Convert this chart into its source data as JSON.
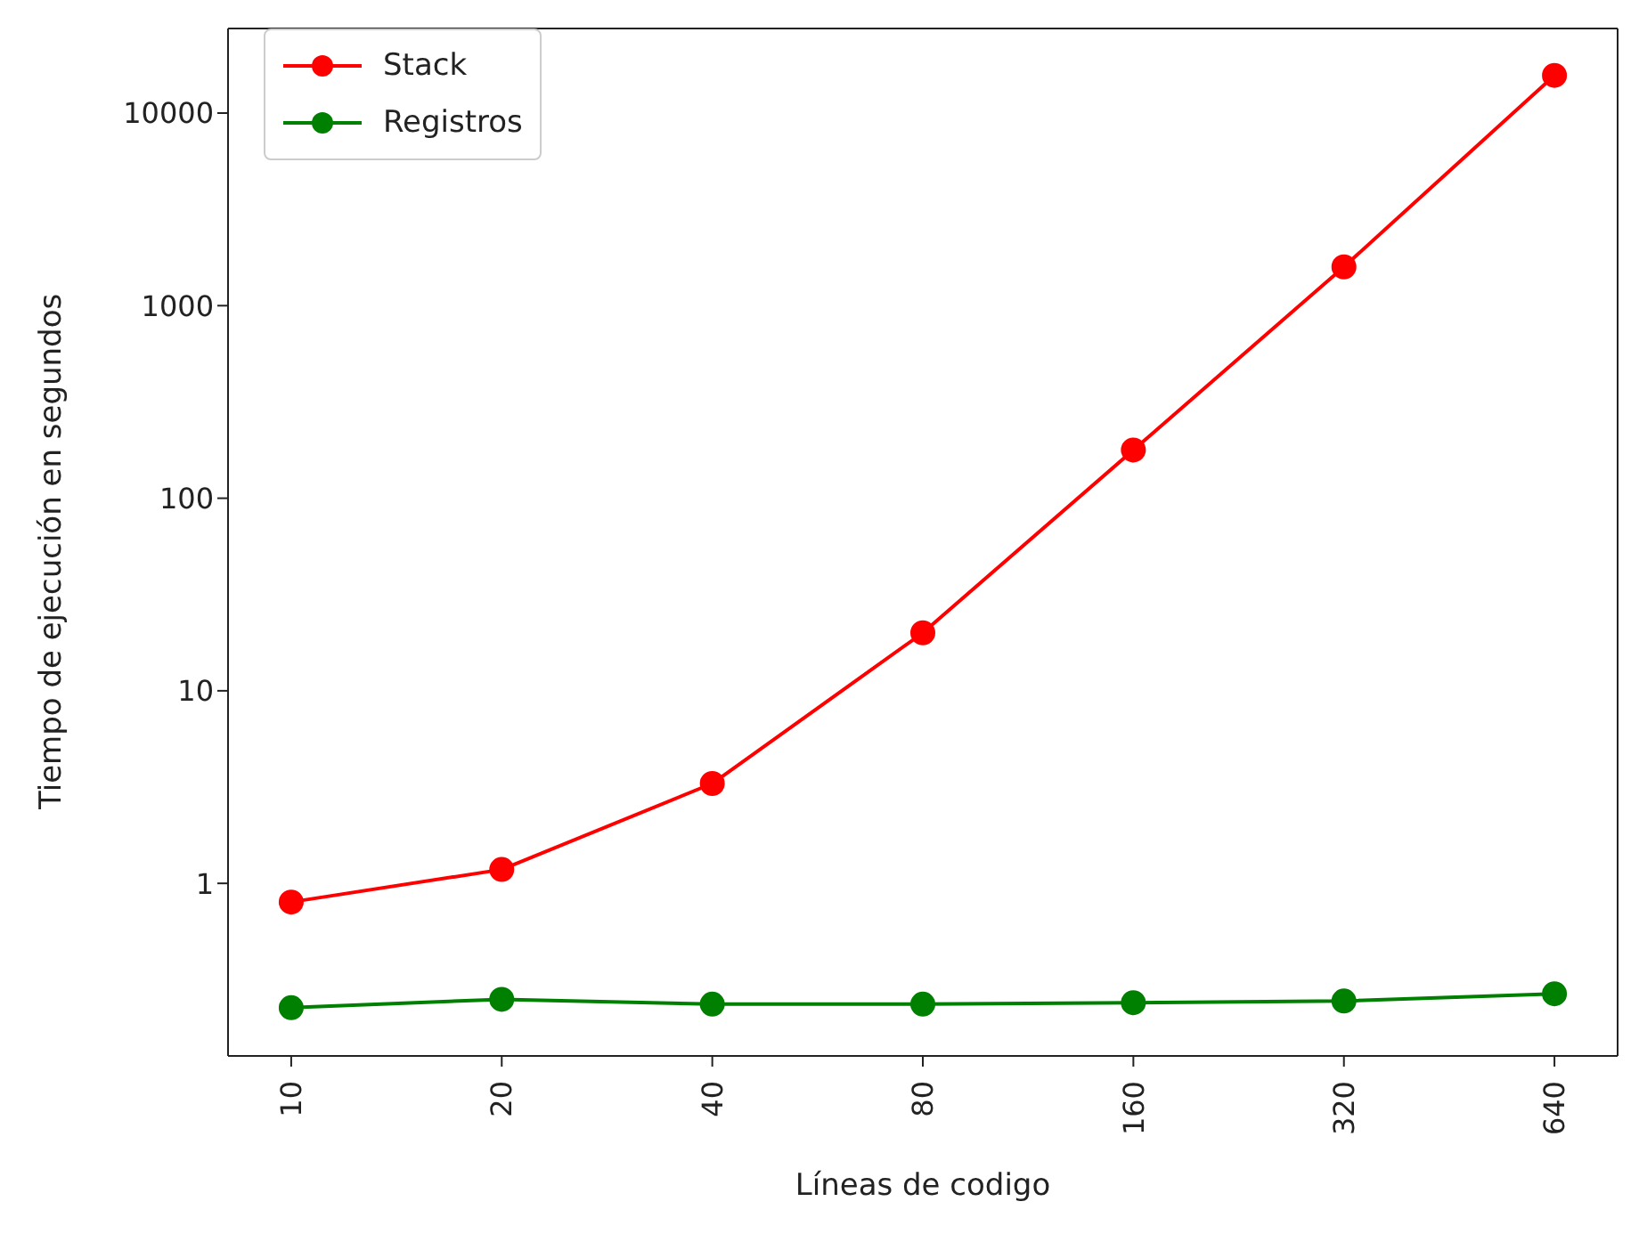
{
  "chart_data": {
    "type": "line",
    "xlabel": "Líneas de codigo",
    "ylabel": "Tiempo de ejecución en segundos",
    "categories": [
      "10",
      "20",
      "40",
      "80",
      "160",
      "320",
      "640"
    ],
    "series": [
      {
        "name": "Stack",
        "color": "#ff0000",
        "values": [
          0.8,
          1.18,
          3.3,
          20,
          178,
          1590,
          15700
        ]
      },
      {
        "name": "Registros",
        "color": "#008000",
        "values": [
          0.226,
          0.25,
          0.236,
          0.236,
          0.24,
          0.245,
          0.267
        ]
      }
    ],
    "log": "y",
    "ylim": [
      0.127,
      27500
    ],
    "yticks": [
      1,
      10,
      100,
      1000,
      10000
    ],
    "grid": false,
    "legend": "top left",
    "marker": "circle",
    "line_style": "solid"
  }
}
